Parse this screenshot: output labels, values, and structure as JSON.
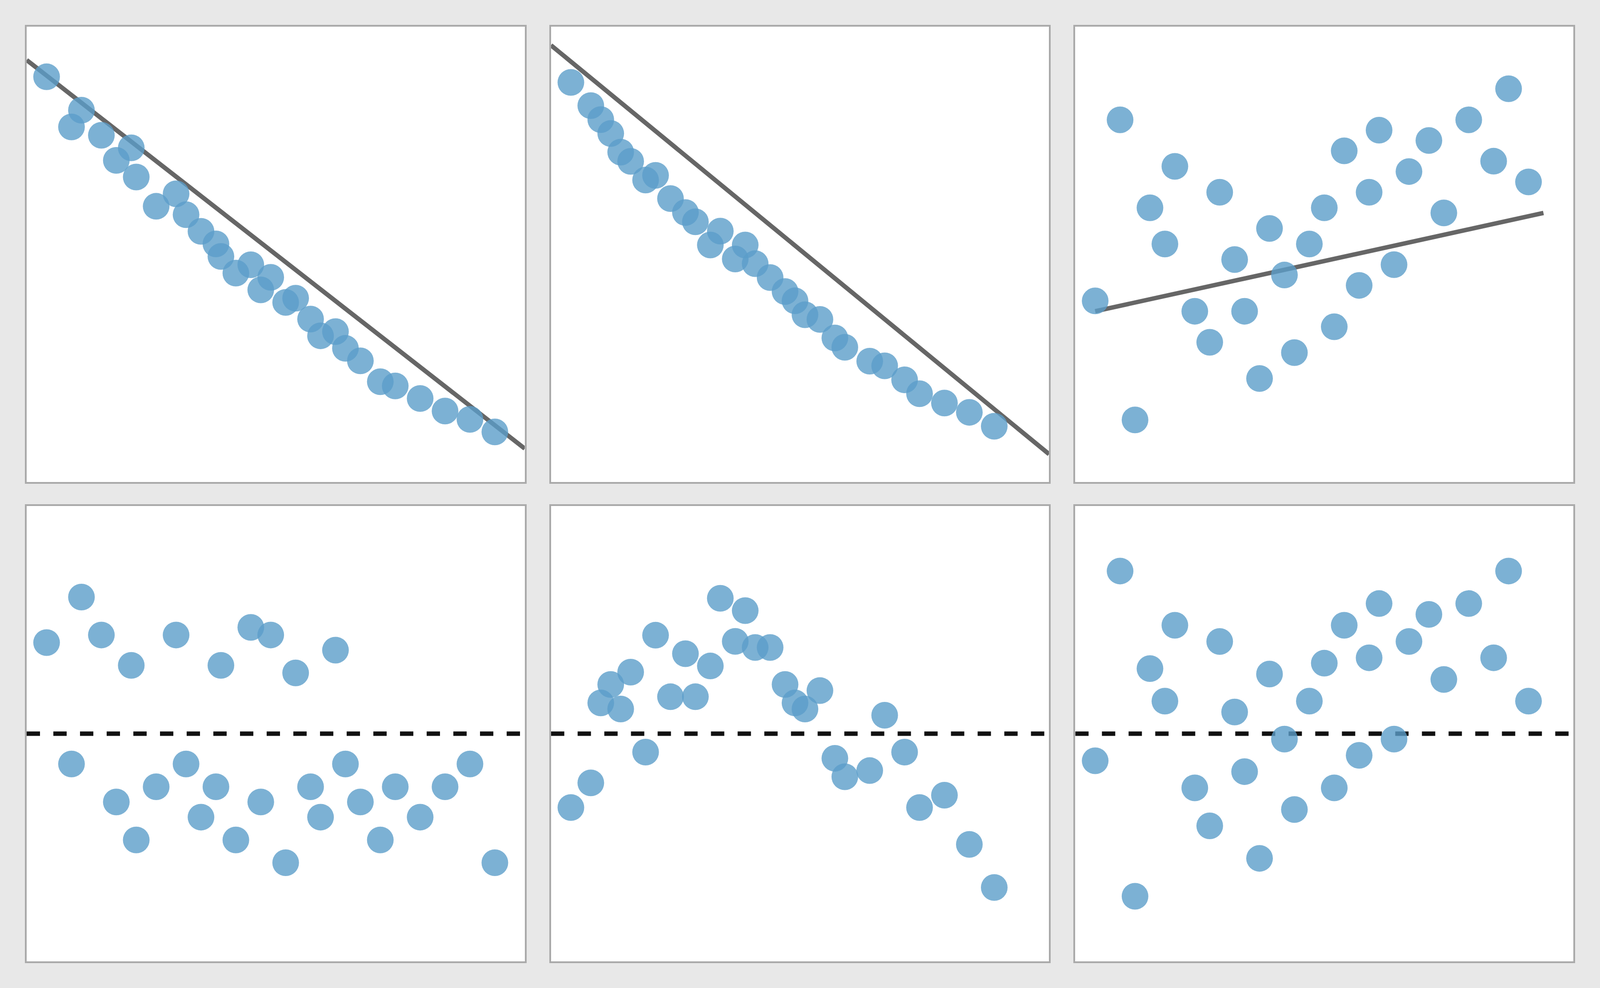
{
  "chart_data": [
    {
      "type": "scatter",
      "tick_labels": false,
      "grid": false,
      "xlim": [
        0.0,
        1.0
      ],
      "ylim": [
        -0.06,
        1.03
      ],
      "series": [
        {
          "type": "scatter",
          "color": "#5b9ec9",
          "x": [
            0.04,
            0.09,
            0.11,
            0.15,
            0.18,
            0.21,
            0.22,
            0.26,
            0.3,
            0.32,
            0.35,
            0.38,
            0.39,
            0.42,
            0.45,
            0.47,
            0.49,
            0.52,
            0.54,
            0.57,
            0.59,
            0.62,
            0.64,
            0.67,
            0.71,
            0.74,
            0.79,
            0.84,
            0.89,
            0.94
          ],
          "values": [
            0.91,
            0.79,
            0.83,
            0.77,
            0.71,
            0.74,
            0.67,
            0.6,
            0.63,
            0.58,
            0.54,
            0.51,
            0.48,
            0.44,
            0.46,
            0.4,
            0.43,
            0.37,
            0.38,
            0.33,
            0.29,
            0.3,
            0.26,
            0.23,
            0.18,
            0.17,
            0.14,
            0.11,
            0.09,
            0.06
          ]
        },
        {
          "type": "line",
          "color": "#666666",
          "line_style": "solid",
          "x": [
            0.0,
            1.0
          ],
          "values": [
            0.95,
            0.02
          ]
        }
      ]
    },
    {
      "type": "scatter",
      "tick_labels": false,
      "grid": false,
      "xlim": [
        0.0,
        1.0
      ],
      "ylim": [
        -0.08,
        0.9
      ],
      "series": [
        {
          "type": "scatter",
          "color": "#5b9ec9",
          "x": [
            0.04,
            0.08,
            0.1,
            0.12,
            0.14,
            0.16,
            0.19,
            0.21,
            0.24,
            0.27,
            0.29,
            0.32,
            0.34,
            0.37,
            0.39,
            0.41,
            0.44,
            0.47,
            0.49,
            0.51,
            0.54,
            0.57,
            0.59,
            0.64,
            0.67,
            0.71,
            0.74,
            0.79,
            0.84,
            0.89
          ],
          "values": [
            0.78,
            0.73,
            0.7,
            0.67,
            0.63,
            0.61,
            0.57,
            0.58,
            0.53,
            0.5,
            0.48,
            0.43,
            0.46,
            0.4,
            0.43,
            0.39,
            0.36,
            0.33,
            0.31,
            0.28,
            0.27,
            0.23,
            0.21,
            0.18,
            0.17,
            0.14,
            0.11,
            0.09,
            0.07,
            0.04
          ]
        },
        {
          "type": "line",
          "color": "#666666",
          "line_style": "solid",
          "x": [
            0.0,
            1.0
          ],
          "values": [
            0.86,
            -0.02
          ]
        }
      ]
    },
    {
      "type": "scatter",
      "tick_labels": false,
      "grid": false,
      "xlim": [
        0.0,
        1.0
      ],
      "ylim": [
        0.04,
        0.92
      ],
      "series": [
        {
          "type": "scatter",
          "color": "#5b9ec9",
          "x": [
            0.04,
            0.09,
            0.12,
            0.15,
            0.18,
            0.2,
            0.24,
            0.27,
            0.29,
            0.32,
            0.34,
            0.37,
            0.39,
            0.42,
            0.44,
            0.47,
            0.5,
            0.52,
            0.54,
            0.57,
            0.59,
            0.61,
            0.64,
            0.67,
            0.71,
            0.74,
            0.79,
            0.84,
            0.87,
            0.91
          ],
          "values": [
            0.39,
            0.74,
            0.16,
            0.57,
            0.5,
            0.65,
            0.37,
            0.31,
            0.6,
            0.47,
            0.37,
            0.24,
            0.53,
            0.44,
            0.29,
            0.5,
            0.57,
            0.34,
            0.68,
            0.42,
            0.6,
            0.72,
            0.46,
            0.64,
            0.7,
            0.56,
            0.74,
            0.66,
            0.8,
            0.62
          ]
        },
        {
          "type": "line",
          "color": "#666666",
          "line_style": "solid",
          "x": [
            0.04,
            0.94
          ],
          "values": [
            0.37,
            0.56
          ]
        }
      ]
    },
    {
      "type": "scatter",
      "tick_labels": false,
      "grid": false,
      "xlim": [
        0.0,
        1.0
      ],
      "ylim": [
        -0.3,
        0.3
      ],
      "series": [
        {
          "type": "scatter",
          "color": "#5b9ec9",
          "x": [
            0.04,
            0.09,
            0.11,
            0.15,
            0.18,
            0.21,
            0.22,
            0.26,
            0.3,
            0.32,
            0.35,
            0.38,
            0.39,
            0.42,
            0.45,
            0.47,
            0.49,
            0.52,
            0.54,
            0.57,
            0.59,
            0.62,
            0.64,
            0.67,
            0.71,
            0.74,
            0.79,
            0.84,
            0.89,
            0.94
          ],
          "values": [
            0.12,
            -0.04,
            0.18,
            0.13,
            -0.09,
            0.09,
            -0.14,
            -0.07,
            0.13,
            -0.04,
            -0.11,
            -0.07,
            0.09,
            -0.14,
            0.14,
            -0.09,
            0.13,
            -0.17,
            0.08,
            -0.07,
            -0.11,
            0.11,
            -0.04,
            -0.09,
            -0.14,
            -0.07,
            -0.11,
            -0.07,
            -0.04,
            -0.17
          ]
        },
        {
          "type": "line",
          "color": "#111111",
          "line_style": "dashed",
          "x": [
            0.0,
            1.0
          ],
          "values": [
            0,
            0
          ]
        }
      ]
    },
    {
      "type": "scatter",
      "tick_labels": false,
      "grid": false,
      "xlim": [
        0.0,
        1.0
      ],
      "ylim": [
        -0.37,
        0.37
      ],
      "series": [
        {
          "type": "scatter",
          "color": "#5b9ec9",
          "x": [
            0.04,
            0.08,
            0.1,
            0.12,
            0.14,
            0.16,
            0.19,
            0.21,
            0.24,
            0.27,
            0.29,
            0.32,
            0.34,
            0.37,
            0.39,
            0.41,
            0.44,
            0.47,
            0.49,
            0.51,
            0.54,
            0.57,
            0.59,
            0.64,
            0.67,
            0.71,
            0.74,
            0.79,
            0.84,
            0.89
          ],
          "values": [
            -0.12,
            -0.08,
            0.05,
            0.08,
            0.04,
            0.1,
            -0.03,
            0.16,
            0.06,
            0.13,
            0.06,
            0.11,
            0.22,
            0.15,
            0.2,
            0.14,
            0.14,
            0.08,
            0.05,
            0.04,
            0.07,
            -0.04,
            -0.07,
            -0.06,
            0.03,
            -0.03,
            -0.12,
            -0.1,
            -0.18,
            -0.25
          ]
        },
        {
          "type": "line",
          "color": "#111111",
          "line_style": "dashed",
          "x": [
            0.0,
            1.0
          ],
          "values": [
            0,
            0
          ]
        }
      ]
    },
    {
      "type": "scatter",
      "tick_labels": false,
      "grid": false,
      "xlim": [
        0.0,
        1.0
      ],
      "ylim": [
        -0.42,
        0.42
      ],
      "series": [
        {
          "type": "scatter",
          "color": "#5b9ec9",
          "x": [
            0.04,
            0.09,
            0.12,
            0.15,
            0.18,
            0.2,
            0.24,
            0.27,
            0.29,
            0.32,
            0.34,
            0.37,
            0.39,
            0.42,
            0.44,
            0.47,
            0.5,
            0.52,
            0.54,
            0.57,
            0.59,
            0.61,
            0.64,
            0.67,
            0.71,
            0.74,
            0.79,
            0.84,
            0.87,
            0.91
          ],
          "values": [
            -0.05,
            0.3,
            -0.3,
            0.12,
            0.06,
            0.2,
            -0.1,
            -0.17,
            0.17,
            0.04,
            -0.07,
            -0.23,
            0.11,
            -0.01,
            -0.14,
            0.06,
            0.13,
            -0.1,
            0.2,
            -0.04,
            0.14,
            0.24,
            -0.01,
            0.17,
            0.22,
            0.1,
            0.24,
            0.14,
            0.3,
            0.06
          ]
        },
        {
          "type": "line",
          "color": "#111111",
          "line_style": "dashed",
          "x": [
            0.0,
            1.0
          ],
          "values": [
            0,
            0
          ]
        }
      ]
    }
  ]
}
